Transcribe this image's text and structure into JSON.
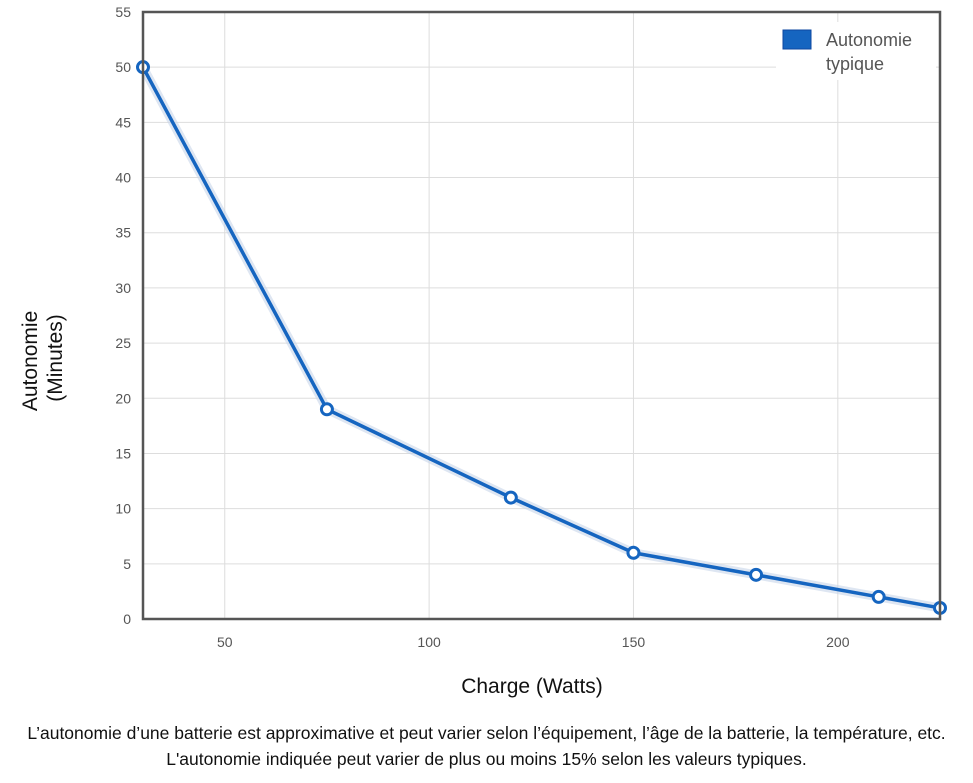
{
  "chart_data": {
    "type": "line",
    "xlabel": "Charge (Watts)",
    "ylabel_lines": [
      "Autonomie",
      "(Minutes)"
    ],
    "xlim": [
      30,
      225
    ],
    "ylim": [
      0,
      55
    ],
    "x_ticks": [
      50,
      100,
      150,
      200
    ],
    "y_ticks": [
      0,
      5,
      10,
      15,
      20,
      25,
      30,
      35,
      40,
      45,
      50,
      55
    ],
    "grid": true,
    "legend_position": "top-right",
    "series": [
      {
        "name_lines": [
          "Autonomie",
          "typique"
        ],
        "color": "#1565c0",
        "x": [
          30,
          75,
          120,
          150,
          180,
          210,
          225
        ],
        "y": [
          50,
          19,
          11,
          6,
          4,
          2,
          1
        ]
      }
    ]
  },
  "caption": "L’autonomie d’une batterie est approximative et peut varier selon l’équipement, l’âge de la batterie, la température, etc. L'autonomie indiquée peut varier de plus ou moins 15% selon les valeurs typiques."
}
